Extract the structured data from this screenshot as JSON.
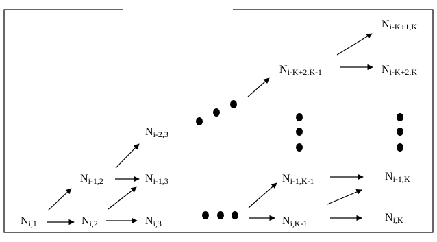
{
  "nodes": [
    {
      "id": "n_i_1",
      "base": "N",
      "sub": "i,1"
    },
    {
      "id": "n_i_2",
      "base": "N",
      "sub": "i,2"
    },
    {
      "id": "n_i_3",
      "base": "N",
      "sub": "i,3"
    },
    {
      "id": "n_im1_2",
      "base": "N",
      "sub": "i-1,2"
    },
    {
      "id": "n_im1_3",
      "base": "N",
      "sub": "i-1,3"
    },
    {
      "id": "n_im2_3",
      "base": "N",
      "sub": "i-2,3"
    },
    {
      "id": "n_imK2_Km1",
      "base": "N",
      "sub": "i-K+2,K-1"
    },
    {
      "id": "n_imK1_K",
      "base": "N",
      "sub": "i-K+1,K"
    },
    {
      "id": "n_imK2_K",
      "base": "N",
      "sub": "i-K+2,K"
    },
    {
      "id": "n_im1_Km1",
      "base": "N",
      "sub": "i-1,K-1"
    },
    {
      "id": "n_im1_K",
      "base": "N",
      "sub": "i-1,K"
    },
    {
      "id": "n_i_Km1",
      "base": "N",
      "sub": "i,K-1"
    },
    {
      "id": "n_i_K",
      "base": "N",
      "sub": "i,K"
    }
  ]
}
